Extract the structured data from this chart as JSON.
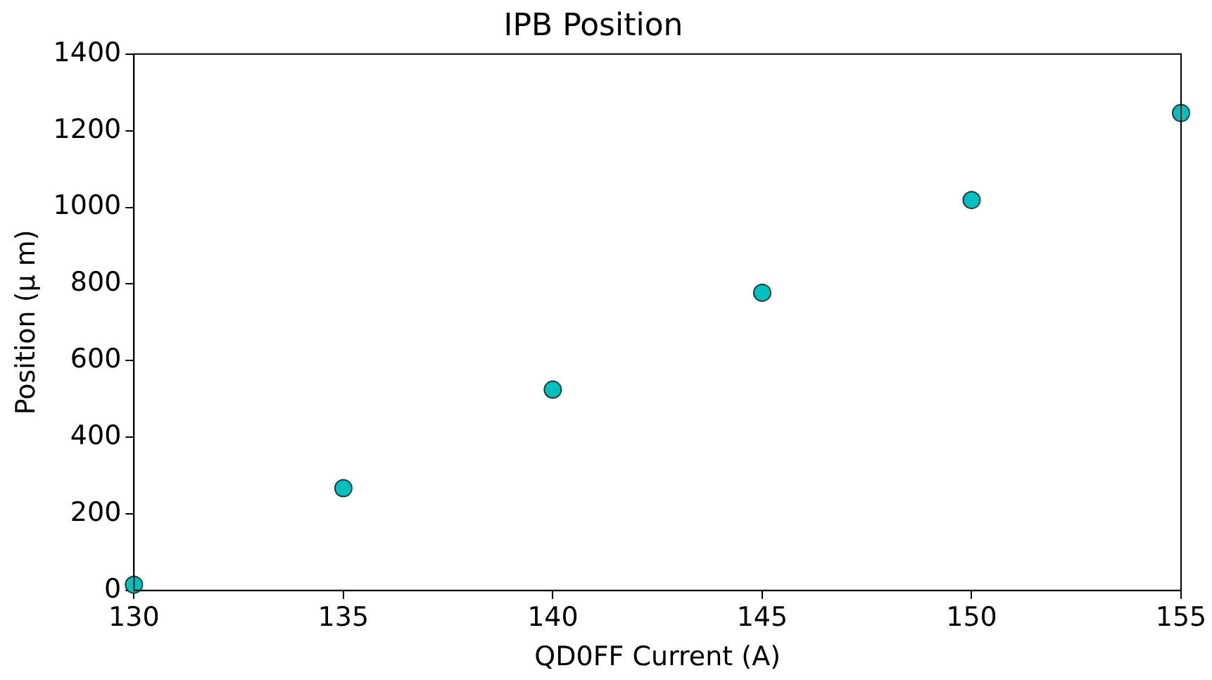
{
  "chart_data": {
    "type": "scatter",
    "title": "IPB Position",
    "xlabel": "QD0FF Current (A)",
    "ylabel": "Position (μ m)",
    "x": [
      130,
      135,
      140,
      145,
      150,
      155
    ],
    "series": [
      {
        "color": "#00bfbf",
        "values": [
          15,
          267,
          524,
          777,
          1019,
          1246
        ]
      }
    ],
    "xlim": [
      130,
      155
    ],
    "xticks": [
      130,
      135,
      140,
      145,
      150,
      155
    ],
    "ylim": [
      0,
      1400
    ],
    "yticks": [
      0,
      200,
      400,
      600,
      800,
      1000,
      1200,
      1400
    ],
    "marker": "circle",
    "grid": false,
    "legend": false
  }
}
